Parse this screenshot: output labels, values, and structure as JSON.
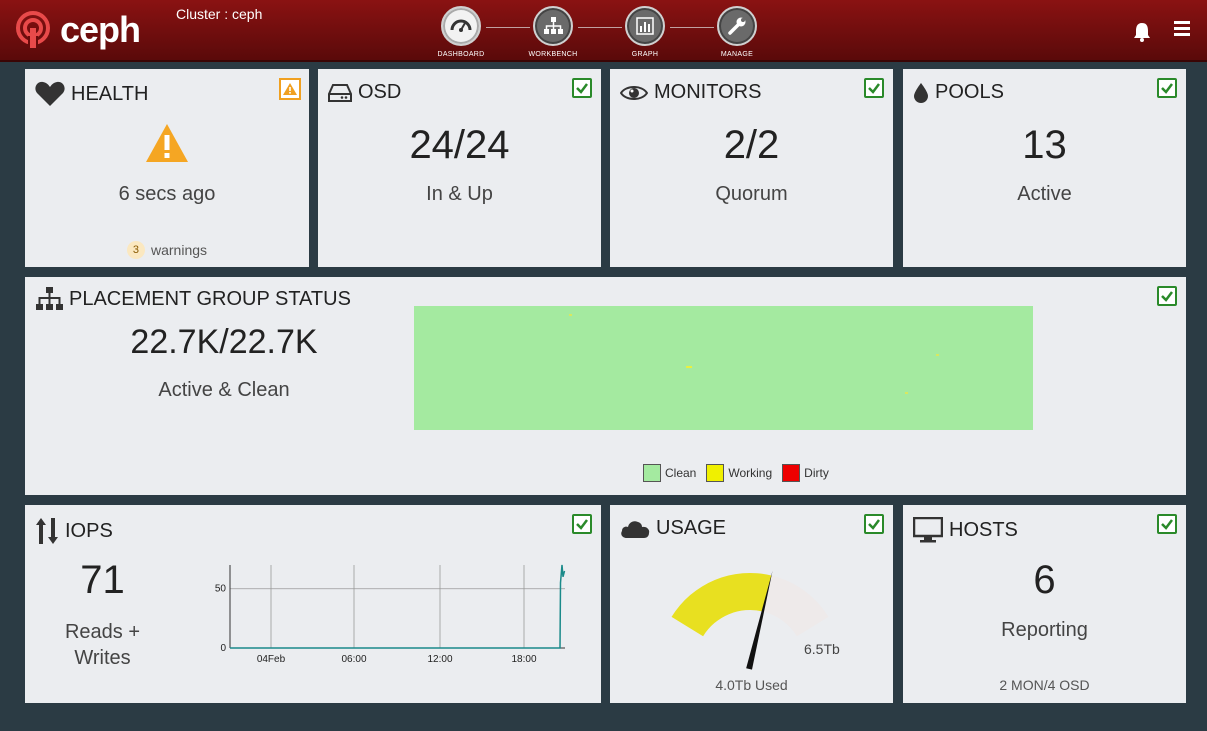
{
  "header": {
    "logo_text": "ceph",
    "cluster_label": "Cluster : ceph",
    "nav": [
      {
        "label": "DASHBOARD"
      },
      {
        "label": "WORKBENCH"
      },
      {
        "label": "GRAPH"
      },
      {
        "label": "MANAGE"
      }
    ]
  },
  "health": {
    "title": "HEALTH",
    "time": "6 secs ago",
    "warning_count": "3",
    "warning_label": "warnings"
  },
  "osd": {
    "title": "OSD",
    "value": "24/24",
    "status": "In & Up"
  },
  "monitors": {
    "title": "MONITORS",
    "value": "2/2",
    "status": "Quorum"
  },
  "pools": {
    "title": "POOLS",
    "value": "13",
    "status": "Active"
  },
  "pg": {
    "title": "PLACEMENT GROUP STATUS",
    "value": "22.7K/22.7K",
    "status": "Active & Clean",
    "legend": [
      {
        "label": "Clean",
        "color": "#a4eaa0"
      },
      {
        "label": "Working",
        "color": "#f0f000"
      },
      {
        "label": "Dirty",
        "color": "#ee0000"
      }
    ]
  },
  "iops": {
    "title": "IOPS",
    "value": "71",
    "label_line1": "Reads +",
    "label_line2": "Writes",
    "chart_data": {
      "type": "line",
      "x_ticks": [
        "04Feb",
        "06:00",
        "12:00",
        "18:00"
      ],
      "y_ticks": [
        "0",
        "50"
      ],
      "ylim": [
        0,
        70
      ],
      "series": [
        {
          "values": [
            0,
            0,
            0,
            55,
            70,
            60,
            65
          ]
        }
      ],
      "grid": true
    }
  },
  "usage": {
    "title": "USAGE",
    "used_fraction": 0.615,
    "capacity_label": "6.5Tb",
    "used_label": "4.0Tb Used"
  },
  "hosts": {
    "title": "HOSTS",
    "value": "6",
    "status": "Reporting",
    "detail": "2 MON/4 OSD"
  }
}
